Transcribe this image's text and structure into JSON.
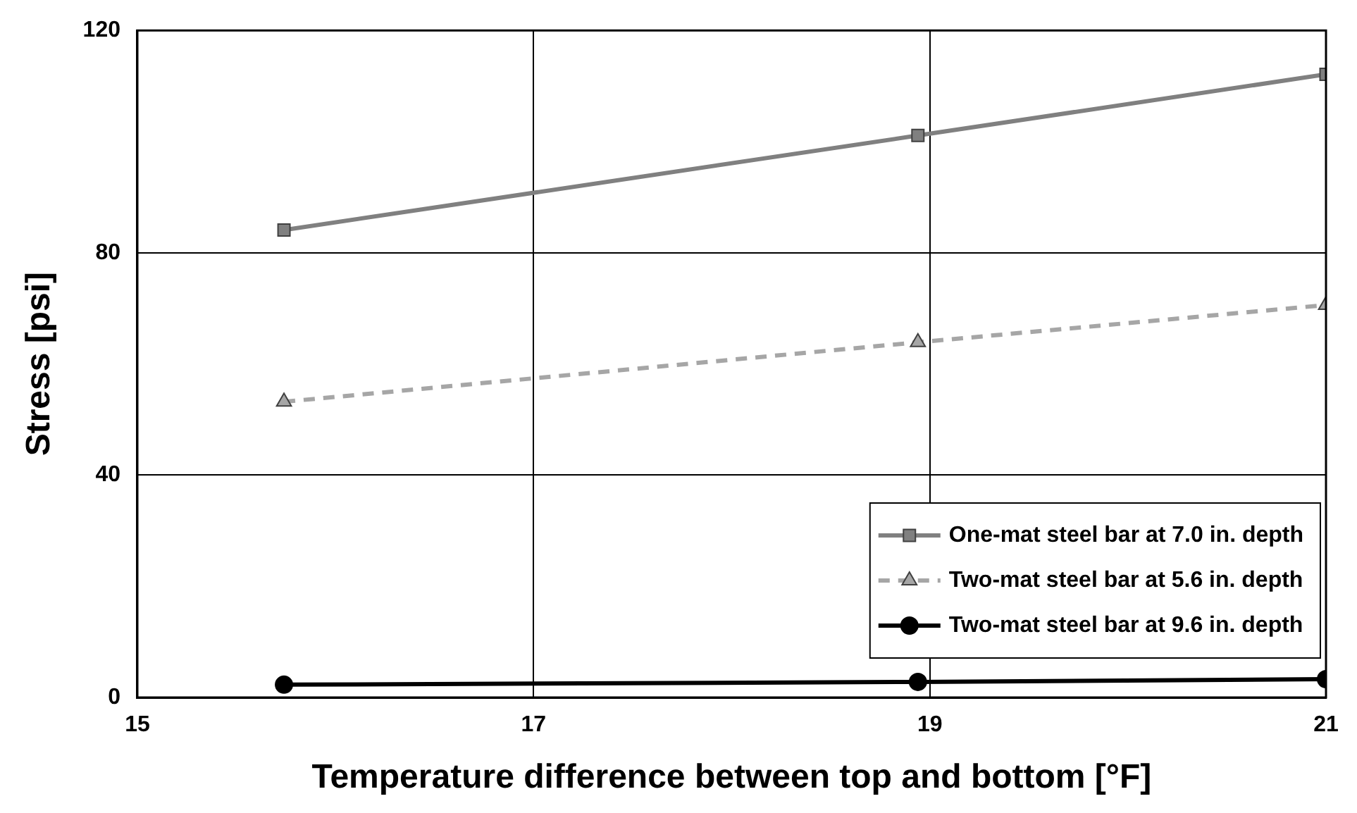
{
  "chart_data": {
    "type": "line",
    "xlabel": "Temperature difference between top and bottom [°F]",
    "ylabel": "Stress [psi]",
    "xlim": [
      15,
      21
    ],
    "xticks": [
      15,
      17,
      19,
      21
    ],
    "ylim": [
      0,
      120
    ],
    "yticks": [
      0,
      40,
      80,
      120
    ],
    "grid": true,
    "legend": "bottom right",
    "series": [
      {
        "name": "One-mat steel bar at 7.0 in. depth",
        "color": "#808080",
        "marker": "square",
        "line_style": "solid",
        "x": [
          15.74,
          18.94,
          21
        ],
        "values": [
          84.1,
          101.1,
          112.1
        ]
      },
      {
        "name": "Two-mat steel bar at 5.6 in. depth",
        "color": "#a6a6a6",
        "marker": "triangle",
        "line_style": "dashed",
        "x": [
          15.74,
          18.94,
          21
        ],
        "values": [
          53.2,
          63.9,
          70.6
        ]
      },
      {
        "name": "Two-mat steel bar at 9.6 in. depth",
        "color": "#000000",
        "marker": "circle",
        "line_style": "solid",
        "x": [
          15.74,
          18.94,
          21
        ],
        "values": [
          2.3,
          2.8,
          3.3
        ]
      }
    ]
  }
}
